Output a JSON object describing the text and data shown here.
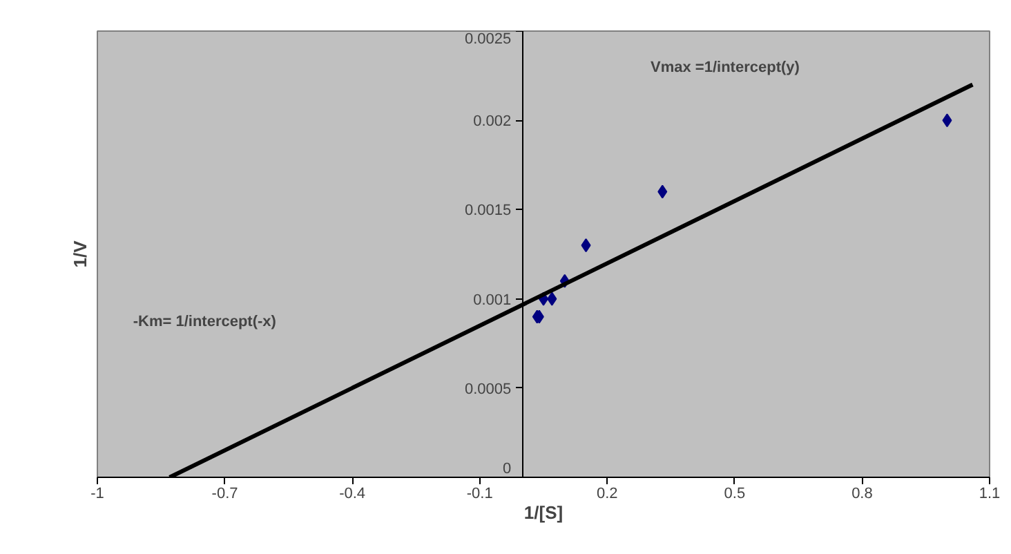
{
  "chart_data": {
    "type": "scatter",
    "xlabel": "1/[S]",
    "ylabel": "1/V",
    "xlim": [
      -1,
      1.1
    ],
    "ylim": [
      0,
      0.0025
    ],
    "xticks": [
      -1,
      -0.7,
      -0.4,
      -0.1,
      0.2,
      0.5,
      0.8,
      1.1
    ],
    "yticks": [
      0,
      0.0005,
      0.001,
      0.0015,
      0.002,
      0.0025
    ],
    "series": [
      {
        "marker": "diamond",
        "color": "#000080",
        "x": [
          1.0,
          0.33,
          0.15,
          0.1,
          0.07,
          0.05,
          0.04,
          0.035
        ],
        "values": [
          0.002,
          0.0016,
          0.0013,
          0.0011,
          0.001,
          0.001,
          0.0009,
          0.0009
        ]
      },
      {
        "type": "line",
        "color": "#000000",
        "x": [
          -0.83,
          1.06
        ],
        "values": [
          0,
          0.0022
        ]
      }
    ],
    "annotations": [
      "Vmax =1/intercept(y)",
      "-Km= 1/intercept(-x)"
    ]
  }
}
